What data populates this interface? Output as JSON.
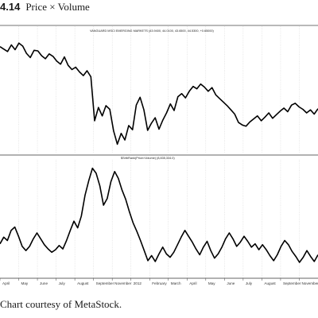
{
  "figure": {
    "number": "4.14",
    "title": "Price × Volume",
    "caption": "Chart courtesy of MetaStock."
  },
  "chart_data": [
    {
      "type": "line",
      "title": "VANGUARD MSCI EMERGING MARKETS (43.9400, 44.0100, 43.6500, 44.5300, +0.65000)",
      "x_labels": [
        "April",
        "May",
        "June",
        "July",
        "August",
        "September",
        "November",
        "2012",
        "February",
        "March",
        "April",
        "May",
        "June",
        "July",
        "August",
        "September",
        "November"
      ],
      "series": [
        {
          "values": [
            54.6,
            54.2,
            53.8,
            54.9,
            54.1,
            55.2,
            54.7,
            53.5,
            52.8,
            54.0,
            53.9,
            53.1,
            52.6,
            53.4,
            53.0,
            52.2,
            51.7,
            52.9,
            51.5,
            50.8,
            51.2,
            50.4,
            49.8,
            50.6,
            49.6,
            42.3,
            44.5,
            43.1,
            44.8,
            44.2,
            40.6,
            38.4,
            40.2,
            39.1,
            41.5,
            40.8,
            44.9,
            46.2,
            44.1,
            40.7,
            41.9,
            42.8,
            40.9,
            42.4,
            43.6,
            45.1,
            44.0,
            46.3,
            46.8,
            46.1,
            47.2,
            48.0,
            47.6,
            48.4,
            47.9,
            47.2,
            47.8,
            46.6,
            46.0,
            45.4,
            44.8,
            44.1,
            43.4,
            42.0,
            41.6,
            41.4,
            42.1,
            42.6,
            43.1,
            42.3,
            42.9,
            43.6,
            42.7,
            43.3,
            43.9,
            44.4,
            43.8,
            44.9,
            45.2,
            44.6,
            44.2,
            43.6,
            44.1,
            43.4,
            44.3
          ],
          "unit": "price"
        }
      ],
      "ylim": [
        37,
        58
      ]
    },
    {
      "type": "line",
      "title": "$SrtbRank(Price×Volume) (8,835,334.0)",
      "x_labels": [
        "April",
        "May",
        "June",
        "July",
        "August",
        "September",
        "November",
        "2012",
        "February",
        "March",
        "April",
        "May",
        "June",
        "July",
        "August",
        "September",
        "November"
      ],
      "series": [
        {
          "values": [
            4.0,
            4.8,
            4.4,
            5.6,
            6.0,
            4.9,
            3.7,
            3.2,
            3.7,
            4.6,
            5.3,
            4.6,
            3.9,
            3.4,
            3.0,
            3.3,
            3.8,
            3.4,
            4.4,
            5.6,
            6.7,
            5.9,
            7.3,
            9.8,
            11.5,
            13.0,
            12.4,
            10.9,
            8.6,
            9.4,
            11.4,
            12.6,
            11.8,
            10.4,
            9.3,
            7.8,
            6.5,
            5.5,
            4.4,
            3.2,
            2.0,
            2.6,
            1.9,
            2.8,
            3.6,
            2.8,
            2.4,
            3.0,
            3.9,
            4.8,
            5.6,
            4.9,
            4.2,
            3.4,
            2.7,
            3.6,
            4.3,
            3.2,
            2.3,
            2.8,
            3.6,
            4.6,
            5.3,
            4.6,
            3.7,
            4.2,
            4.9,
            4.3,
            3.6,
            4.0,
            3.3,
            3.9,
            3.3,
            2.6,
            2.0,
            2.7,
            3.7,
            4.4,
            3.9,
            3.1,
            2.5,
            1.8,
            2.4,
            3.2,
            2.5,
            1.9,
            2.7
          ],
          "unit": "rank"
        }
      ],
      "ylim": [
        0,
        14
      ]
    }
  ]
}
